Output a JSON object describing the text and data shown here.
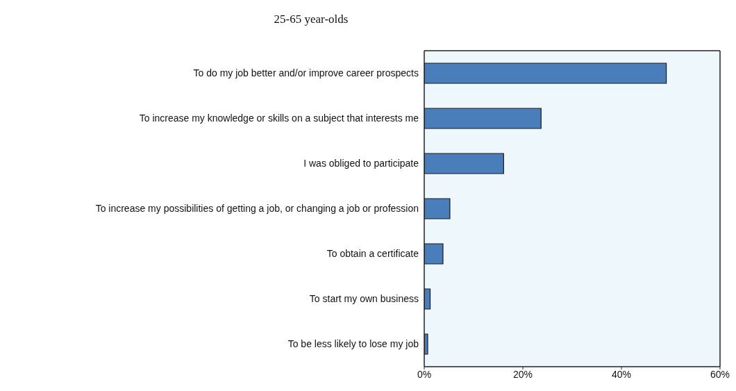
{
  "chart_data": {
    "type": "bar",
    "orientation": "horizontal",
    "title": "25-65 year-olds",
    "categories": [
      "To do my job better and/or improve career prospects",
      "To increase my knowledge or skills on a subject that interests me",
      "I was obliged to participate",
      "To increase my possibilities of getting a job, or changing a job or profession",
      "To obtain a certificate",
      "To start my own business",
      "To be less likely to lose my job"
    ],
    "values": [
      49.1,
      23.7,
      16.1,
      5.2,
      3.8,
      1.2,
      0.7
    ],
    "color": "#4a7ebb",
    "xlim": [
      0,
      60
    ],
    "xticks": [
      {
        "value": 0,
        "label": "0%"
      },
      {
        "value": 20,
        "label": "20%"
      },
      {
        "value": 40,
        "label": "40%"
      },
      {
        "value": 60,
        "label": "60%"
      }
    ],
    "grid": false,
    "legend": false
  }
}
